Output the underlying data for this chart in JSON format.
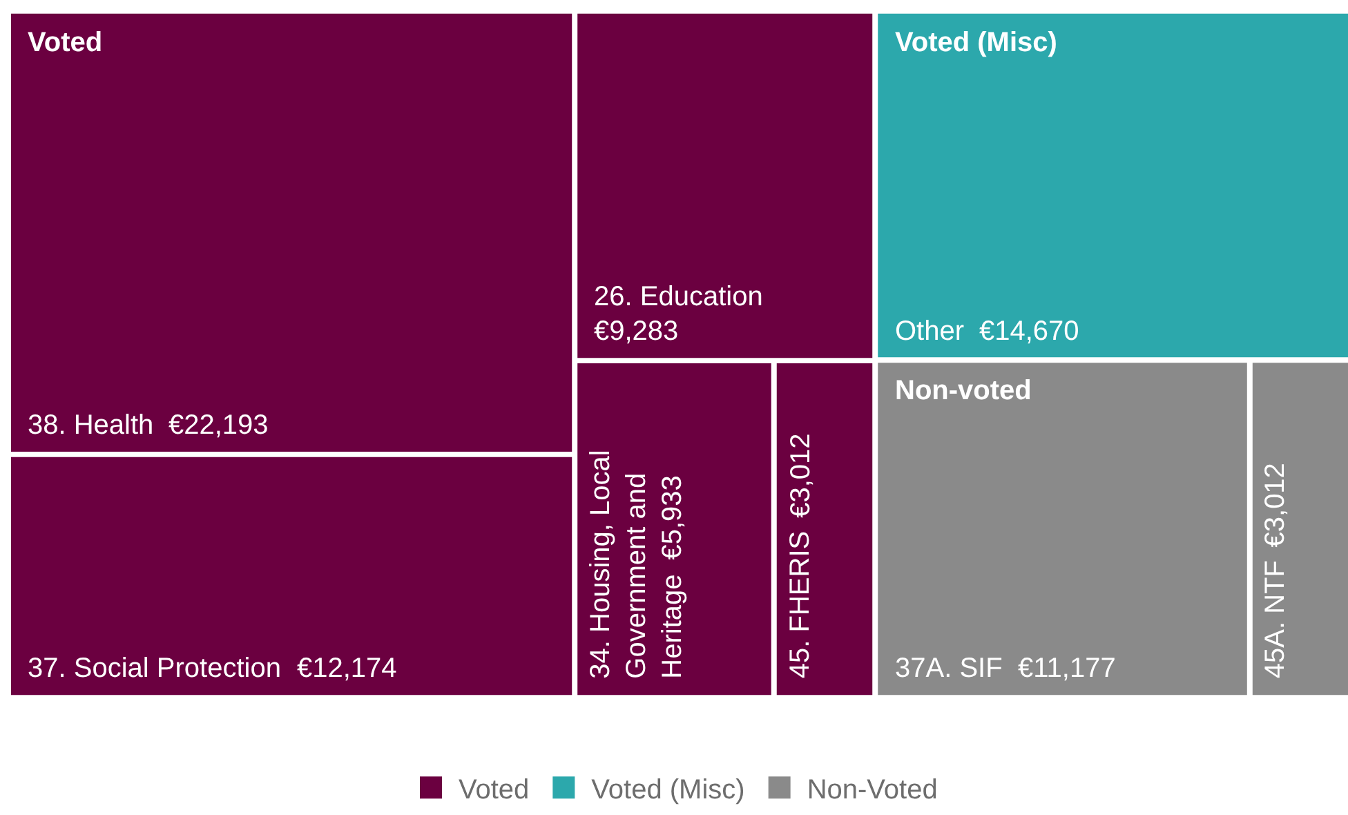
{
  "chart_data": {
    "type": "other",
    "categories": [
      "38. Health",
      "37. Social Protection",
      "26. Education",
      "34. Housing, Local Government and Heritage",
      "45. FHERIS",
      "Other",
      "37A. SIF",
      "45A. NTF"
    ],
    "series": [
      {
        "name": "Voted",
        "color": "#6b0040",
        "values": [
          22193,
          12174,
          9283,
          5933,
          3012,
          null,
          null,
          null
        ],
        "value_labels": [
          "€22,193",
          "€12,174",
          "€9,283",
          "€5,933",
          "€3,012",
          null,
          null,
          null
        ]
      },
      {
        "name": "Voted (Misc)",
        "color": "#2ca8ac",
        "values": [
          null,
          null,
          null,
          null,
          null,
          14670,
          null,
          null
        ],
        "value_labels": [
          null,
          null,
          null,
          null,
          null,
          "€14,670",
          null,
          null
        ]
      },
      {
        "name": "Non-Voted",
        "color": "#8a8a8a",
        "values": [
          null,
          null,
          null,
          null,
          null,
          null,
          11177,
          3012
        ],
        "value_labels": [
          null,
          null,
          null,
          null,
          null,
          null,
          "€11,177",
          "€3,012"
        ]
      }
    ],
    "annotations": [
      "Voted",
      "Voted (Misc)",
      "Non-voted"
    ],
    "legend": "bottom"
  }
}
